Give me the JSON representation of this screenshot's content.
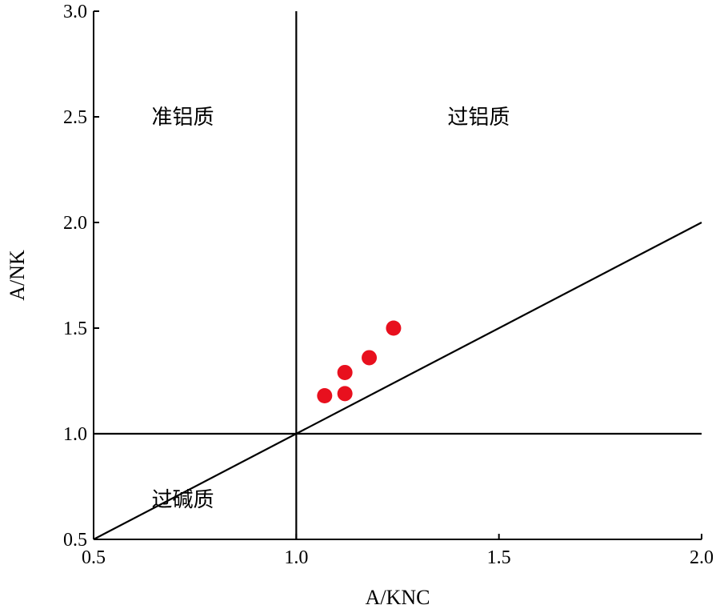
{
  "chart_data": {
    "type": "scatter",
    "xlabel": "A/KNC",
    "ylabel": "A/NK",
    "xlim": [
      0.5,
      2.0
    ],
    "ylim": [
      0.5,
      3.0
    ],
    "x_ticks": [
      0.5,
      1.0,
      1.5,
      2.0
    ],
    "x_tick_labels": [
      "0.5",
      "1.0",
      "1.5",
      "2.0"
    ],
    "y_ticks": [
      0.5,
      1.0,
      1.5,
      2.0,
      2.5,
      3.0
    ],
    "y_tick_labels": [
      "0.5",
      "1.0",
      "1.5",
      "2.0",
      "2.5",
      "3.0"
    ],
    "grid": false,
    "marker_color": "#e8101e",
    "points": [
      {
        "x": 1.07,
        "y": 1.18
      },
      {
        "x": 1.12,
        "y": 1.19
      },
      {
        "x": 1.12,
        "y": 1.29
      },
      {
        "x": 1.18,
        "y": 1.36
      },
      {
        "x": 1.24,
        "y": 1.5
      }
    ],
    "reference_lines": [
      {
        "from": [
          1.0,
          0.5
        ],
        "to": [
          1.0,
          3.0
        ]
      },
      {
        "from": [
          0.5,
          1.0
        ],
        "to": [
          2.0,
          1.0
        ]
      },
      {
        "from": [
          0.5,
          0.5
        ],
        "to": [
          2.0,
          2.0
        ]
      }
    ],
    "region_labels": [
      {
        "text": "准铝质",
        "x": 0.72,
        "y": 2.5
      },
      {
        "text": "过铝质",
        "x": 1.45,
        "y": 2.5
      },
      {
        "text": "过碱质",
        "x": 0.72,
        "y": 0.69
      }
    ]
  }
}
